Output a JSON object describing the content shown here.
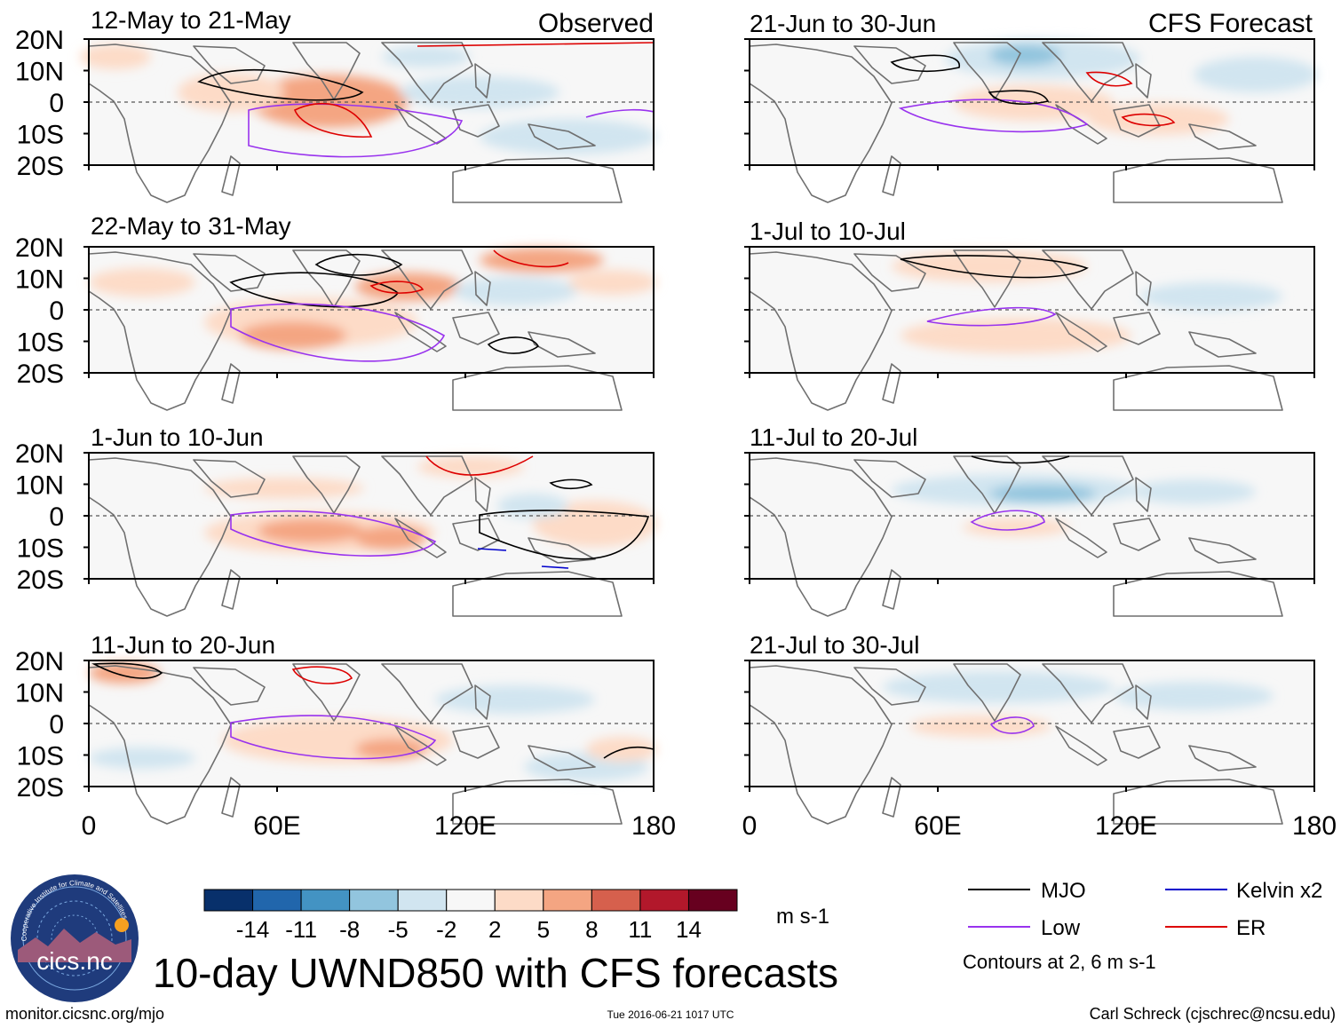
{
  "chart_data": {
    "type": "heatmap",
    "title": "10-day UWND850 with CFS forecasts",
    "variable": "850 hPa zonal wind anomaly",
    "units": "m s-1",
    "column_titles": {
      "left": "Observed",
      "right": "CFS Forecast"
    },
    "x_axis": {
      "range": [
        0,
        180
      ],
      "tick_labels": [
        "0",
        "60E",
        "120E",
        "180"
      ]
    },
    "y_axis": {
      "range": [
        -20,
        20
      ],
      "tick_labels": [
        "20N",
        "10N",
        "0",
        "10S",
        "20S"
      ]
    },
    "colorbar": {
      "levels": [
        "-14",
        "-11",
        "-8",
        "-5",
        "-2",
        "2",
        "5",
        "8",
        "11",
        "14"
      ],
      "colors": [
        "#08306b",
        "#2166ac",
        "#4393c3",
        "#92c5de",
        "#d1e5f0",
        "#f7f7f7",
        "#fddbc7",
        "#f4a582",
        "#d6604d",
        "#b2182b",
        "#67001f"
      ],
      "units_label": "m s-1"
    },
    "legend": {
      "entries": [
        {
          "label": "MJO",
          "color": "#000000"
        },
        {
          "label": "Kelvin x2",
          "color": "#0000cc"
        },
        {
          "label": "Low",
          "color": "#9933ee"
        },
        {
          "label": "ER",
          "color": "#dd0000"
        }
      ],
      "note": "Contours at 2, 6 m s-1"
    },
    "panels": [
      {
        "period": "12-May to 21-May",
        "source": "Observed"
      },
      {
        "period": "22-May to 31-May",
        "source": "Observed"
      },
      {
        "period": "1-Jun to 10-Jun",
        "source": "Observed"
      },
      {
        "period": "11-Jun to 20-Jun",
        "source": "Observed"
      },
      {
        "period": "21-Jun to 30-Jun",
        "source": "CFS Forecast"
      },
      {
        "period": "1-Jul to 10-Jul",
        "source": "CFS Forecast"
      },
      {
        "period": "11-Jul to 20-Jul",
        "source": "CFS Forecast"
      },
      {
        "period": "21-Jul to 30-Jul",
        "source": "CFS Forecast"
      }
    ]
  },
  "logo": {
    "text": "cics.nc",
    "ring_text": "Cooperative Institute for Climate and Satellites"
  },
  "footer": {
    "url": "monitor.cicsnc.org/mjo",
    "timestamp": "Tue 2016-06-21 1017 UTC",
    "author": "Carl Schreck (cjschrec@ncsu.edu)"
  }
}
